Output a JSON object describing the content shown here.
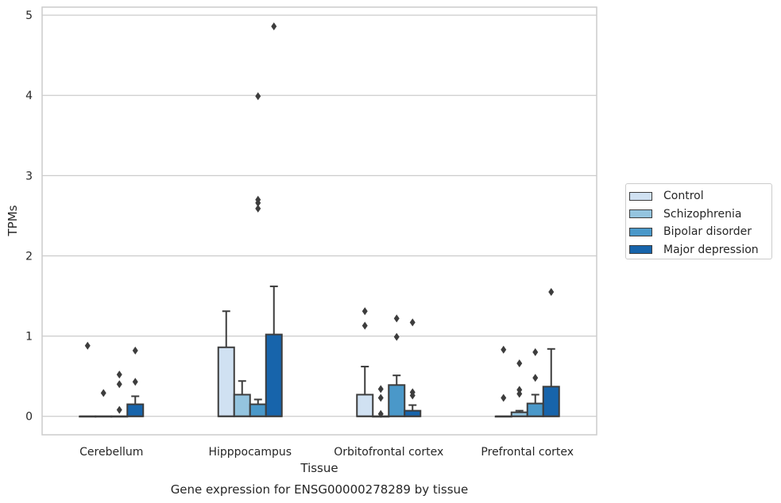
{
  "chart_data": {
    "type": "box",
    "title": "",
    "caption": "Gene expression for ENSG00000278289 by tissue",
    "xlabel": "Tissue",
    "ylabel": "TPMs",
    "ylim": [
      -0.23,
      5.1
    ],
    "yticks": [
      0,
      1,
      2,
      3,
      4,
      5
    ],
    "grid": true,
    "legend_position": "right",
    "categories": [
      "Cerebellum",
      "Hipppocampus",
      "Orbitofrontal cortex",
      "Prefrontal cortex"
    ],
    "series": [
      {
        "name": "Control",
        "color": "#d0e1f2",
        "boxes": [
          {
            "q1": 0,
            "median": 0,
            "q3": 0,
            "whisker_low": 0,
            "whisker_high": 0,
            "outliers": [
              0.88
            ]
          },
          {
            "q1": 0,
            "median": 0,
            "q3": 0.86,
            "whisker_low": 0,
            "whisker_high": 1.31,
            "outliers": []
          },
          {
            "q1": 0,
            "median": 0,
            "q3": 0.27,
            "whisker_low": 0,
            "whisker_high": 0.62,
            "outliers": [
              1.31,
              1.13
            ]
          },
          {
            "q1": 0,
            "median": 0,
            "q3": 0,
            "whisker_low": 0,
            "whisker_high": 0,
            "outliers": [
              0.83,
              0.23
            ]
          }
        ]
      },
      {
        "name": "Schizophrenia",
        "color": "#94c4df",
        "boxes": [
          {
            "q1": 0,
            "median": 0,
            "q3": 0,
            "whisker_low": 0,
            "whisker_high": 0,
            "outliers": [
              0.29
            ]
          },
          {
            "q1": 0,
            "median": 0,
            "q3": 0.27,
            "whisker_low": 0,
            "whisker_high": 0.44,
            "outliers": []
          },
          {
            "q1": 0,
            "median": 0,
            "q3": 0,
            "whisker_low": 0,
            "whisker_high": 0,
            "outliers": [
              0.34,
              0.23,
              0.03
            ]
          },
          {
            "q1": 0,
            "median": 0,
            "q3": 0.05,
            "whisker_low": 0,
            "whisker_high": 0.07,
            "outliers": [
              0.66,
              0.33,
              0.28
            ]
          }
        ]
      },
      {
        "name": "Bipolar disorder",
        "color": "#4a98c9",
        "boxes": [
          {
            "q1": 0,
            "median": 0,
            "q3": 0,
            "whisker_low": 0,
            "whisker_high": 0,
            "outliers": [
              0.52,
              0.4,
              0.08
            ]
          },
          {
            "q1": 0,
            "median": 0,
            "q3": 0.15,
            "whisker_low": 0,
            "whisker_high": 0.21,
            "outliers": [
              3.99,
              2.7,
              2.66,
              2.59
            ]
          },
          {
            "q1": 0,
            "median": 0,
            "q3": 0.39,
            "whisker_low": 0,
            "whisker_high": 0.51,
            "outliers": [
              1.22,
              0.99
            ]
          },
          {
            "q1": 0,
            "median": 0,
            "q3": 0.16,
            "whisker_low": 0,
            "whisker_high": 0.27,
            "outliers": [
              0.8,
              0.48
            ]
          }
        ]
      },
      {
        "name": "Major depression",
        "color": "#1764ab",
        "boxes": [
          {
            "q1": 0,
            "median": 0,
            "q3": 0.15,
            "whisker_low": 0,
            "whisker_high": 0.25,
            "outliers": [
              0.82,
              0.43
            ]
          },
          {
            "q1": 0,
            "median": 0,
            "q3": 1.02,
            "whisker_low": 0,
            "whisker_high": 1.62,
            "outliers": [
              4.86
            ]
          },
          {
            "q1": 0,
            "median": 0,
            "q3": 0.07,
            "whisker_low": 0,
            "whisker_high": 0.14,
            "outliers": [
              1.17,
              0.3,
              0.26
            ]
          },
          {
            "q1": 0,
            "median": 0,
            "q3": 0.37,
            "whisker_low": 0,
            "whisker_high": 0.84,
            "outliers": [
              1.55
            ]
          }
        ]
      }
    ]
  }
}
